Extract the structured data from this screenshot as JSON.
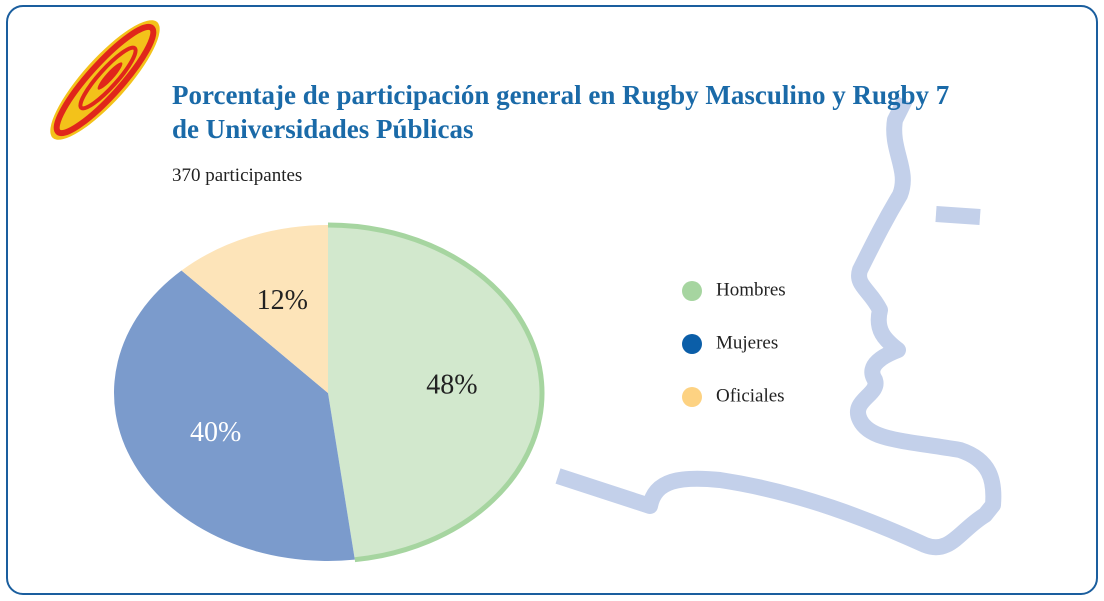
{
  "chart_data": {
    "type": "pie",
    "title": "Porcentaje de participación general en Rugby Masculino y Rugby 7 de Universidades Públicas",
    "subtitle": "370 participantes",
    "categories": [
      "Hombres",
      "Mujeres",
      "Oficiales"
    ],
    "values": [
      48,
      40,
      12
    ],
    "value_labels": [
      "48%",
      "40%",
      "12%"
    ],
    "colors": [
      "#a6d5a0",
      "#0b5ea8",
      "#fdd282"
    ],
    "slice_colors": [
      "#d2e8cd",
      "#7b9bcc",
      "#fde4b9"
    ],
    "label_colors": [
      "#222222",
      "#ffffff",
      "#222222"
    ],
    "legend": "right"
  }
}
